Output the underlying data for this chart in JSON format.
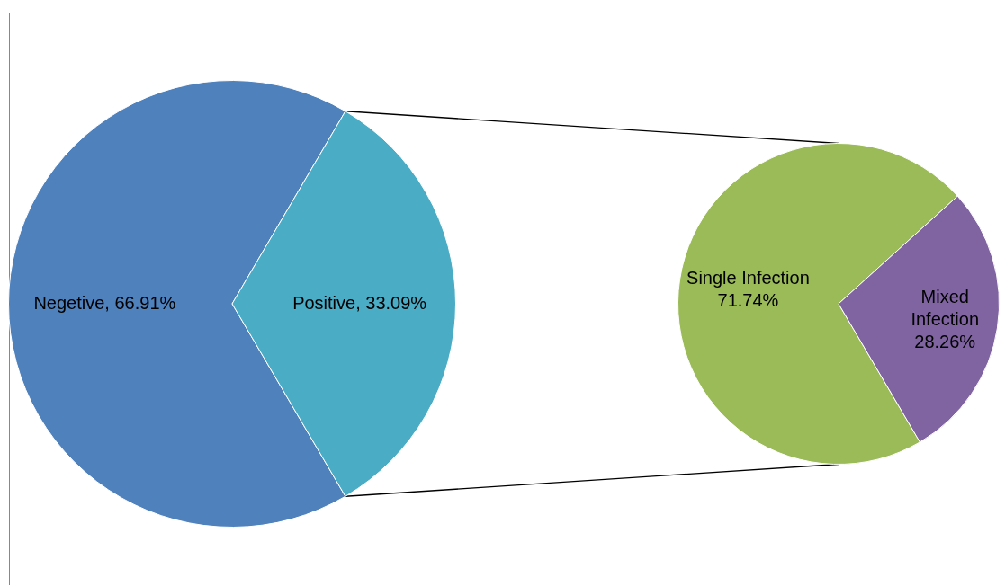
{
  "chart_data": [
    {
      "type": "pie",
      "categories": [
        "Negetive",
        "Positive"
      ],
      "values": [
        66.91,
        33.09
      ],
      "colors": [
        "#4f81bd",
        "#4bacc6"
      ],
      "value_labels": [
        "66.91%",
        "33.09%"
      ]
    },
    {
      "type": "pie",
      "categories": [
        "Single Infection",
        "Mixed Infection"
      ],
      "values": [
        71.74,
        28.26
      ],
      "colors": [
        "#9bbb59",
        "#8064a2"
      ],
      "value_labels": [
        "71.74%",
        "28.26%"
      ]
    }
  ]
}
